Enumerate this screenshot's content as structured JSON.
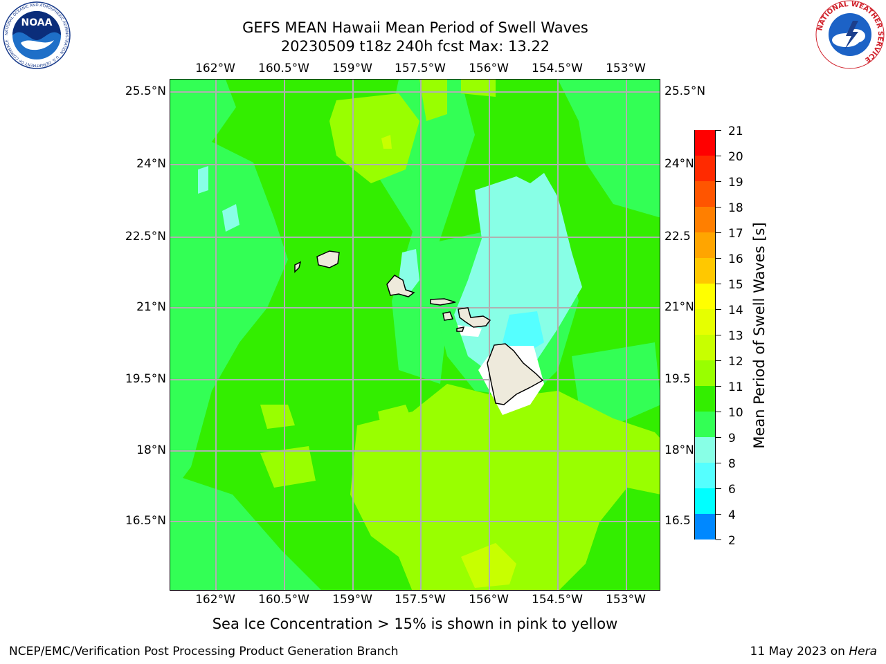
{
  "title": {
    "line1": "GEFS MEAN Hawaii Mean Period of Swell Waves",
    "line2": "20230509 t18z 240h fcst   Max: 13.22"
  },
  "map": {
    "lon_labels": [
      "162°W",
      "160.5°W",
      "159°W",
      "157.5°W",
      "156°W",
      "154.5°W",
      "153°W"
    ],
    "lat_labels_left": [
      "25.5°N",
      "24°N",
      "22.5°N",
      "21°N",
      "19.5°N",
      "18°N",
      "16.5°N"
    ],
    "lat_labels_right": [
      "25.5°N",
      "24°N",
      "22.5",
      "21°N",
      "19.5",
      "18°N",
      "16.5"
    ],
    "lon_range": [
      -163.0,
      -152.3
    ],
    "lat_range": [
      15.0,
      25.7
    ],
    "grid": true,
    "islands": [
      "Niihau",
      "Kauai",
      "Oahu",
      "Molokai",
      "Lanai",
      "Kahoolawe",
      "Maui",
      "Hawaii"
    ]
  },
  "colorbar": {
    "label": "Mean Period of Swell Waves [s]",
    "ticks": [
      "21",
      "20",
      "19",
      "18",
      "17",
      "16",
      "15",
      "14",
      "13",
      "12",
      "11",
      "10",
      "9",
      "8",
      "6",
      "4",
      "2"
    ],
    "colors": [
      "#ff0000",
      "#ff2a00",
      "#ff5500",
      "#ff7f00",
      "#ffa500",
      "#ffc800",
      "#ffff00",
      "#e6ff00",
      "#c8ff00",
      "#99ff00",
      "#33ee00",
      "#33ff55",
      "#88ffe6",
      "#55ffff",
      "#00ffff",
      "#0088ff",
      "#0000ff"
    ]
  },
  "note": "Sea Ice Concentration > 15% is shown in pink to yellow",
  "footer": {
    "left": "NCEP/EMC/Verification Post Processing Product Generation Branch",
    "right_date": "11 May 2023 on ",
    "right_host": "Hera"
  },
  "logos": {
    "noaa": "NOAA",
    "noaa_ring": "NATIONAL OCEANIC AND ATMOSPHERIC ADMINISTRATION · U.S. DEPARTMENT OF COMMERCE",
    "nws": "NATIONAL WEATHER SERVICE"
  },
  "colors": {
    "land": "#eeeadc",
    "grid": "#b0b0b0",
    "base": "#33ee00"
  }
}
